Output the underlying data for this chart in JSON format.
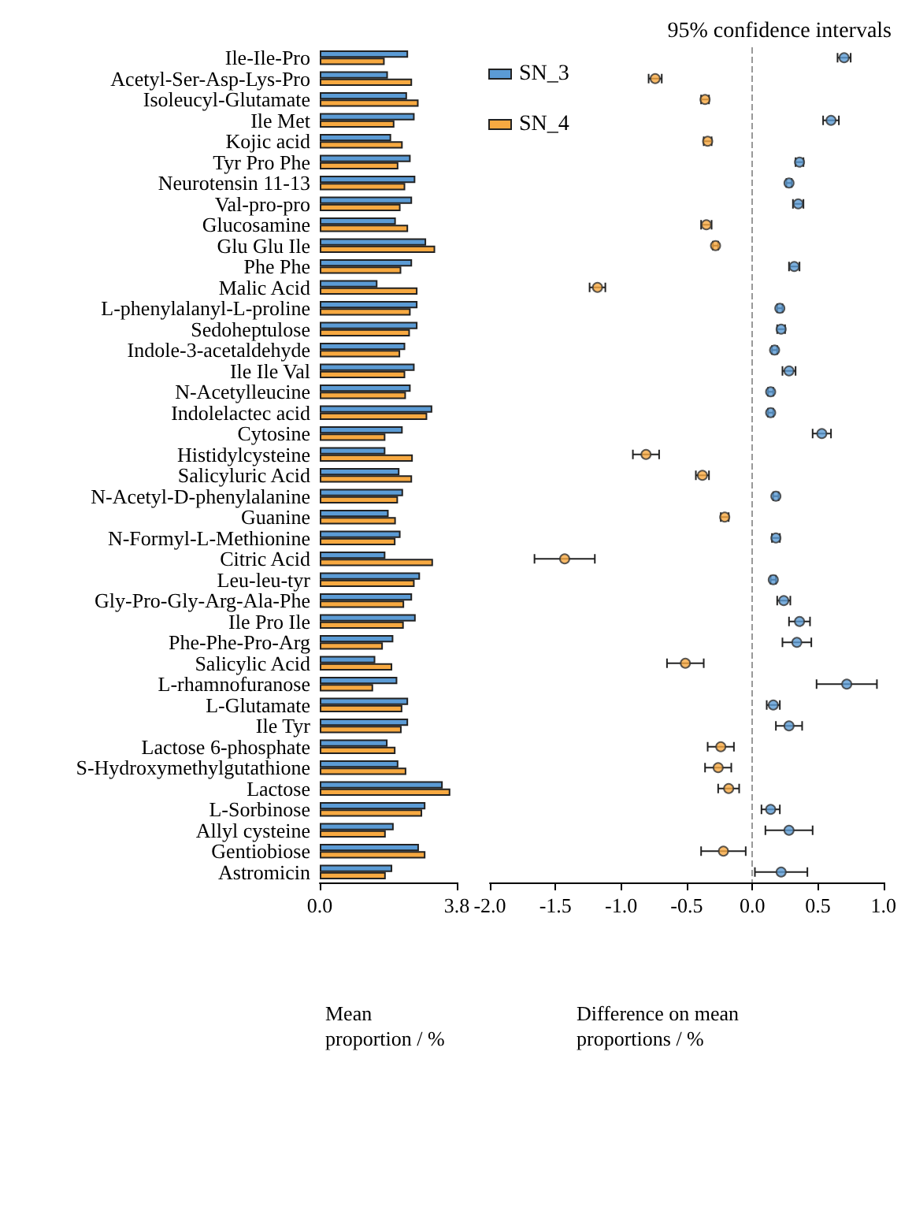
{
  "chart_data": [
    {
      "type": "bar",
      "orientation": "horizontal",
      "xlabel": "Mean proportion / %",
      "categories": [
        "Ile-Ile-Pro",
        "Acetyl-Ser-Asp-Lys-Pro",
        "Isoleucyl-Glutamate",
        "Ile Met",
        "Kojic acid",
        "Tyr Pro Phe",
        "Neurotensin 11-13",
        "Val-pro-pro",
        "Glucosamine",
        "Glu Glu Ile",
        "Phe Phe",
        "Malic Acid",
        "L-phenylalanyl-L-proline",
        "Sedoheptulose",
        "Indole-3-acetaldehyde",
        "Ile Ile Val",
        "N-Acetylleucine",
        "Indolelactec acid",
        "Cytosine",
        "Histidylcysteine",
        "Salicyluric Acid",
        "N-Acetyl-D-phenylalanine",
        "Guanine",
        "N-Formyl-L-Methionine",
        "Citric Acid",
        "Leu-leu-tyr",
        "Gly-Pro-Gly-Arg-Ala-Phe",
        "Ile Pro Ile",
        "Phe-Phe-Pro-Arg",
        "Salicylic Acid",
        "L-rhamnofuranose",
        "L-Glutamate",
        "Ile Tyr",
        "Lactose 6-phosphate",
        "S-Hydroxymethylgutathione",
        "Lactose",
        "L-Sorbinose",
        "Allyl cysteine",
        "Gentiobiose",
        "Astromicin"
      ],
      "series": [
        {
          "name": "SN_3",
          "color": "#5b9bd5",
          "values": [
            2.45,
            1.89,
            2.42,
            2.63,
            1.98,
            2.52,
            2.65,
            2.56,
            2.11,
            2.95,
            2.56,
            1.6,
            2.71,
            2.71,
            2.37,
            2.63,
            2.52,
            3.12,
            2.3,
            1.82,
            2.21,
            2.31,
            1.91,
            2.24,
            1.82,
            2.78,
            2.56,
            2.66,
            2.04,
            1.54,
            2.15,
            2.45,
            2.45,
            1.88,
            2.18,
            3.41,
            2.93,
            2.05,
            2.75,
            2.01
          ]
        },
        {
          "name": "SN_4",
          "color": "#f7a941",
          "values": [
            1.8,
            2.56,
            2.74,
            2.07,
            2.3,
            2.18,
            2.37,
            2.24,
            2.45,
            3.2,
            2.26,
            2.71,
            2.52,
            2.5,
            2.23,
            2.37,
            2.39,
            2.98,
            1.82,
            2.58,
            2.56,
            2.17,
            2.11,
            2.1,
            3.14,
            2.63,
            2.34,
            2.33,
            1.75,
            2.01,
            1.48,
            2.29,
            2.27,
            2.1,
            2.4,
            3.62,
            2.84,
            1.83,
            2.93,
            1.83
          ]
        }
      ],
      "xlim": [
        0,
        3.8
      ],
      "xticks": [
        {
          "value": 0,
          "label": "0.0"
        },
        3.8
      ],
      "grid": false,
      "legend": "right"
    },
    {
      "type": "scatter",
      "orientation": "horizontal",
      "title": "95% confidence intervals",
      "xlabel": "Difference on mean proportions / %",
      "categories": [
        "Ile-Ile-Pro",
        "Acetyl-Ser-Asp-Lys-Pro",
        "Isoleucyl-Glutamate",
        "Ile Met",
        "Kojic acid",
        "Tyr Pro Phe",
        "Neurotensin 11-13",
        "Val-pro-pro",
        "Glucosamine",
        "Glu Glu Ile",
        "Phe Phe",
        "Malic Acid",
        "L-phenylalanyl-L-proline",
        "Sedoheptulose",
        "Indole-3-acetaldehyde",
        "Ile Ile Val",
        "N-Acetylleucine",
        "Indolelactec acid",
        "Cytosine",
        "Histidylcysteine",
        "Salicyluric Acid",
        "N-Acetyl-D-phenylalanine",
        "Guanine",
        "N-Formyl-L-Methionine",
        "Citric Acid",
        "Leu-leu-tyr",
        "Gly-Pro-Gly-Arg-Ala-Phe",
        "Ile Pro Ile",
        "Phe-Phe-Pro-Arg",
        "Salicylic Acid",
        "L-rhamnofuranose",
        "L-Glutamate",
        "Ile Tyr",
        "Lactose 6-phosphate",
        "S-Hydroxymethylgutathione",
        "Lactose",
        "L-Sorbinose",
        "Allyl cysteine",
        "Gentiobiose",
        "Astromicin"
      ],
      "values": [
        0.7,
        -0.74,
        -0.36,
        0.6,
        -0.34,
        0.36,
        0.28,
        0.35,
        -0.35,
        -0.28,
        0.32,
        -1.18,
        0.21,
        0.22,
        0.17,
        0.28,
        0.14,
        0.14,
        0.53,
        -0.81,
        -0.38,
        0.18,
        -0.21,
        0.18,
        -1.43,
        0.16,
        0.24,
        0.36,
        0.34,
        -0.51,
        0.72,
        0.16,
        0.28,
        -0.24,
        -0.26,
        -0.18,
        0.14,
        0.28,
        -0.22,
        0.22
      ],
      "errors": [
        0.05,
        0.05,
        0.03,
        0.06,
        0.03,
        0.03,
        0.02,
        0.04,
        0.04,
        0.02,
        0.04,
        0.06,
        0.02,
        0.03,
        0.02,
        0.05,
        0.02,
        0.02,
        0.07,
        0.1,
        0.05,
        0.02,
        0.03,
        0.03,
        0.23,
        0.02,
        0.05,
        0.08,
        0.11,
        0.14,
        0.23,
        0.05,
        0.1,
        0.1,
        0.1,
        0.08,
        0.07,
        0.18,
        0.17,
        0.2
      ],
      "colors": [
        "#5b9bd5",
        "#f7a941",
        "#f7a941",
        "#5b9bd5",
        "#f7a941",
        "#5b9bd5",
        "#5b9bd5",
        "#5b9bd5",
        "#f7a941",
        "#f7a941",
        "#5b9bd5",
        "#f7a941",
        "#5b9bd5",
        "#5b9bd5",
        "#5b9bd5",
        "#5b9bd5",
        "#5b9bd5",
        "#5b9bd5",
        "#5b9bd5",
        "#f7a941",
        "#f7a941",
        "#5b9bd5",
        "#f7a941",
        "#5b9bd5",
        "#f7a941",
        "#5b9bd5",
        "#5b9bd5",
        "#5b9bd5",
        "#5b9bd5",
        "#f7a941",
        "#5b9bd5",
        "#5b9bd5",
        "#5b9bd5",
        "#f7a941",
        "#f7a941",
        "#f7a941",
        "#5b9bd5",
        "#5b9bd5",
        "#f7a941",
        "#5b9bd5"
      ],
      "marker": "circle",
      "xlim": [
        -2,
        1
      ],
      "xticks": [
        {
          "value": -2,
          "label": "-2.0"
        },
        -1.5,
        {
          "value": -1,
          "label": "-1.0"
        },
        -0.5,
        {
          "value": 0,
          "label": "0.0"
        },
        0.5,
        {
          "value": 1,
          "label": "1.0"
        }
      ],
      "ref_lines": [
        {
          "axis": "x",
          "value": 0,
          "color": "#999999",
          "line_style": "dashed"
        }
      ],
      "grid": false,
      "tick_labels": "x"
    }
  ]
}
